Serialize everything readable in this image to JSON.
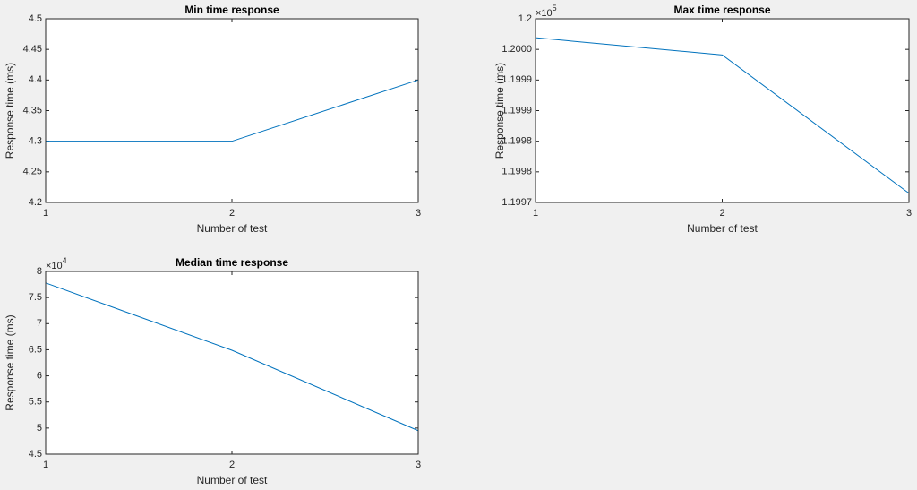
{
  "chart_data": [
    {
      "type": "line",
      "title": "Min time response",
      "xlabel": "Number of test",
      "ylabel": "Response time (ms)",
      "x": [
        1,
        2,
        3
      ],
      "series": [
        {
          "name": "Min",
          "color": "#0072bd",
          "values": [
            4.3,
            4.3,
            4.4
          ]
        }
      ],
      "xlim": [
        1,
        3
      ],
      "xticks": [
        1,
        2,
        3
      ],
      "ylim": [
        4.2,
        4.5
      ],
      "yticks": [
        4.2,
        4.25,
        4.3,
        4.35,
        4.4,
        4.45,
        4.5
      ]
    },
    {
      "type": "line",
      "title": "Max time response",
      "xlabel": "Number of test",
      "ylabel": "Response time (ms)",
      "y_multiplier": {
        "base": "×10",
        "exponent": "5"
      },
      "x": [
        1,
        2,
        3
      ],
      "series": [
        {
          "name": "Max",
          "color": "#0072bd",
          "values": [
            119996.9,
            119994.1,
            119971.5
          ]
        }
      ],
      "xlim": [
        1,
        3
      ],
      "xticks": [
        1,
        2,
        3
      ],
      "ylim": [
        119970,
        120000
      ],
      "yticks": [
        {
          "value": 119970,
          "label": "1.1997"
        },
        {
          "value": 119975,
          "label": "1.1998"
        },
        {
          "value": 119980,
          "label": "1.1998"
        },
        {
          "value": 119985,
          "label": "1.1999"
        },
        {
          "value": 119990,
          "label": "1.1999"
        },
        {
          "value": 119995,
          "label": "1.2000"
        },
        {
          "value": 120000,
          "label": "1.2"
        }
      ]
    },
    {
      "type": "line",
      "title": "Median time response",
      "xlabel": "Number of test",
      "ylabel": "Response time (ms)",
      "y_multiplier": {
        "base": "×10",
        "exponent": "4"
      },
      "x": [
        1,
        2,
        3
      ],
      "series": [
        {
          "name": "Median",
          "color": "#0072bd",
          "values": [
            77800,
            64900,
            49500
          ]
        }
      ],
      "xlim": [
        1,
        3
      ],
      "xticks": [
        1,
        2,
        3
      ],
      "ylim": [
        45000,
        80000
      ],
      "yticks": [
        {
          "value": 45000,
          "label": "4.5"
        },
        {
          "value": 50000,
          "label": "5"
        },
        {
          "value": 55000,
          "label": "5.5"
        },
        {
          "value": 60000,
          "label": "6"
        },
        {
          "value": 65000,
          "label": "6.5"
        },
        {
          "value": 70000,
          "label": "7"
        },
        {
          "value": 75000,
          "label": "7.5"
        },
        {
          "value": 80000,
          "label": "8"
        }
      ]
    }
  ]
}
